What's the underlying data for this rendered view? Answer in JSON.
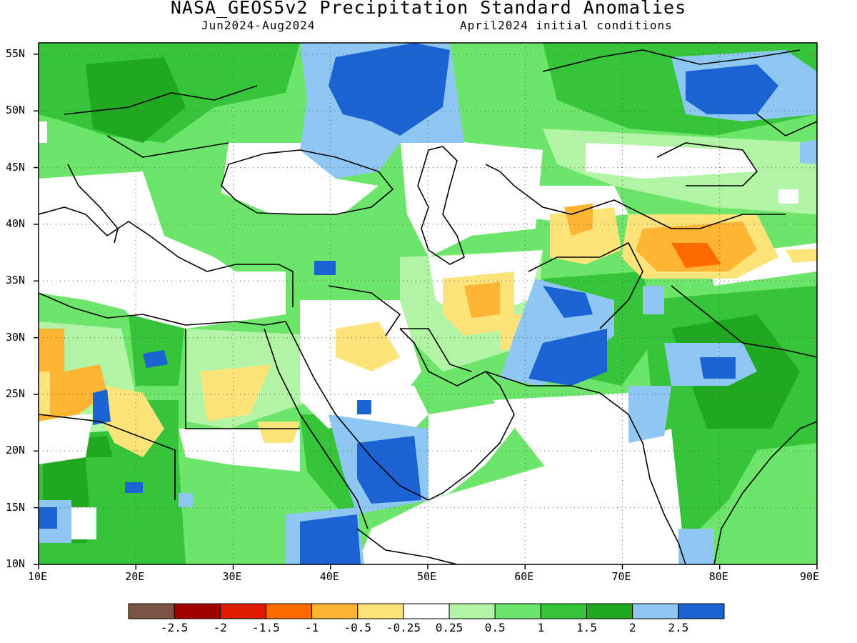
{
  "header": {
    "title": "NASA_GEOS5v2 Precipitation Standard Anomalies",
    "period": "Jun2024-Aug2024",
    "init": "April2024 initial conditions"
  },
  "axes": {
    "lat_labels": [
      "55N",
      "50N",
      "45N",
      "40N",
      "35N",
      "30N",
      "25N",
      "20N",
      "15N",
      "10N"
    ],
    "lat_values": [
      55,
      50,
      45,
      40,
      35,
      30,
      25,
      20,
      15,
      10
    ],
    "lon_labels": [
      "10E",
      "20E",
      "30E",
      "40E",
      "50E",
      "60E",
      "70E",
      "80E",
      "90E"
    ],
    "lon_values": [
      10,
      20,
      30,
      40,
      50,
      60,
      70,
      80,
      90
    ],
    "lon_range": [
      10,
      90
    ],
    "lat_range": [
      10,
      56
    ]
  },
  "colorbar": {
    "colors": [
      "#7b5445",
      "#a30000",
      "#de1c00",
      "#ff6a00",
      "#ffb433",
      "#fde47a",
      "#ffffff",
      "#b2f4a6",
      "#6ce56a",
      "#36c53a",
      "#20a920",
      "#8ec8f2",
      "#1b62d2"
    ],
    "labels": [
      "-2.5",
      "-2",
      "-1.5",
      "-1",
      "-0.5",
      "-0.25",
      "0.25",
      "0.5",
      "1",
      "1.5",
      "2",
      "2.5"
    ]
  },
  "map_colors": {
    "land_white": "#ffffff",
    "light_green": "#b2f4a6",
    "green": "#6ce56a",
    "mid_green": "#36c53a",
    "dark_green": "#20a920",
    "light_blue": "#8ec8f2",
    "blue": "#1b62d2",
    "light_yellow": "#fde47a",
    "orange_yellow": "#ffb433",
    "orange": "#ff6a00"
  }
}
